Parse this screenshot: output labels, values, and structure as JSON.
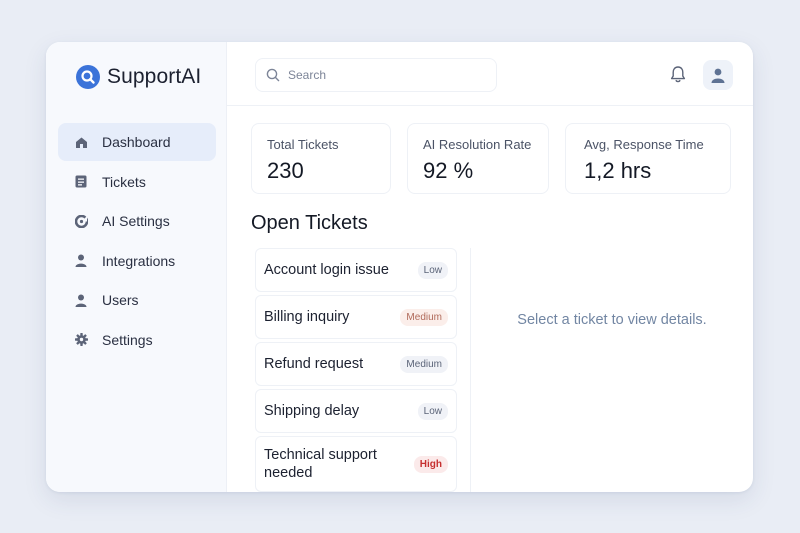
{
  "brand": {
    "name": "SupportAI"
  },
  "sidebar": {
    "items": [
      {
        "label": "Dashboard",
        "icon": "home-icon",
        "active": true
      },
      {
        "label": "Tickets",
        "icon": "ticket-icon"
      },
      {
        "label": "AI Settings",
        "icon": "ai-settings-icon"
      },
      {
        "label": "Integrations",
        "icon": "integrations-icon"
      },
      {
        "label": "Users",
        "icon": "users-icon"
      },
      {
        "label": "Settings",
        "icon": "gear-icon"
      }
    ]
  },
  "header": {
    "search_placeholder": "Search",
    "icons": [
      "search-icon",
      "bell-icon",
      "user-avatar-icon"
    ]
  },
  "stats": [
    {
      "label": "Total Tickets",
      "value": "230"
    },
    {
      "label": "AI Resolution Rate",
      "value": "92 %"
    },
    {
      "label": "Avg, Response Time",
      "value": "1,2 hrs"
    }
  ],
  "open_tickets": {
    "title": "Open Tickets",
    "items": [
      {
        "title": "Account login issue",
        "priority": "Low"
      },
      {
        "title": "Billing inquiry",
        "priority": "Medium"
      },
      {
        "title": "Refund request",
        "priority": "Medium"
      },
      {
        "title": "Shipping delay",
        "priority": "Low"
      },
      {
        "title": "Technical support needed",
        "priority": "High"
      }
    ]
  },
  "detail": {
    "empty_message": "Select a ticket to view details."
  },
  "colors": {
    "accent": "#3b73d9",
    "active_nav": "#e6edfa",
    "high": "#c63030"
  }
}
